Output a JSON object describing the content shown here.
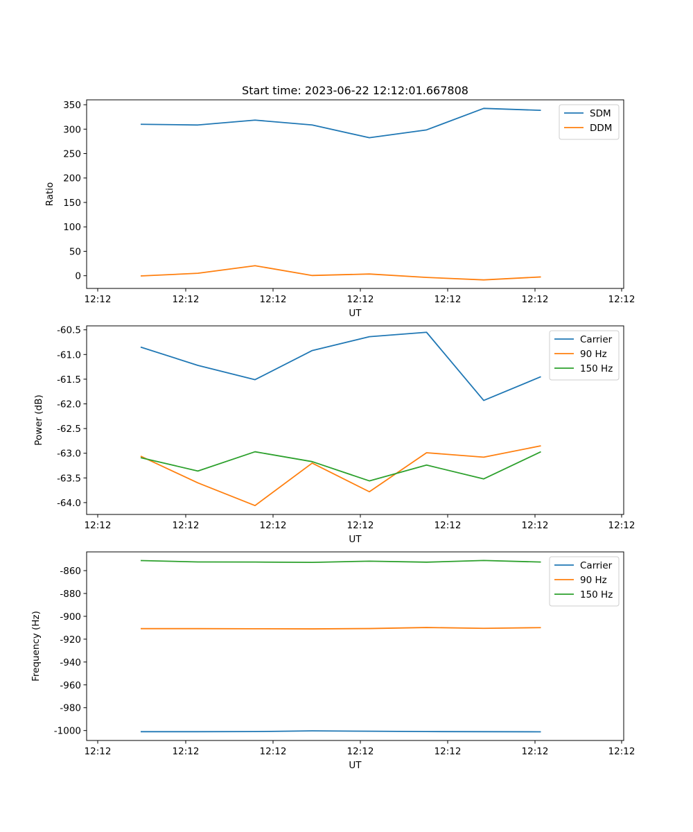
{
  "figure_title": "Start time: 2023-06-22 12:12:01.667808",
  "chart_data": [
    {
      "type": "line",
      "title": "Start time: 2023-06-22 12:12:01.667808",
      "xlabel": "UT",
      "ylabel": "Ratio",
      "x_tick_labels": [
        "12:12",
        "12:12",
        "12:12",
        "12:12",
        "12:12",
        "12:12",
        "12:12"
      ],
      "y_ticks": [
        0,
        50,
        100,
        150,
        200,
        250,
        300,
        350
      ],
      "ylim": [
        -26,
        360
      ],
      "legend_position": "upper right",
      "series": [
        {
          "name": "SDM",
          "color": "#1f77b4",
          "values": [
            310,
            308.5,
            318.5,
            308.5,
            282.5,
            298.5,
            342.5,
            338.5
          ]
        },
        {
          "name": "DDM",
          "color": "#ff7f0e",
          "values": [
            -0.5,
            5,
            20.5,
            0.5,
            3.5,
            -3.5,
            -8.5,
            -2.5
          ]
        }
      ]
    },
    {
      "type": "line",
      "xlabel": "UT",
      "ylabel": "Power (dB)",
      "x_tick_labels": [
        "12:12",
        "12:12",
        "12:12",
        "12:12",
        "12:12",
        "12:12",
        "12:12"
      ],
      "y_ticks": [
        -64.0,
        -63.5,
        -63.0,
        -62.5,
        -62.0,
        -61.5,
        -61.0,
        -60.5
      ],
      "ylim": [
        -64.24,
        -60.42
      ],
      "legend_position": "upper right",
      "series": [
        {
          "name": "Carrier",
          "color": "#1f77b4",
          "values": [
            -60.85,
            -61.22,
            -61.51,
            -60.92,
            -60.64,
            -60.55,
            -61.93,
            -61.45
          ]
        },
        {
          "name": "90 Hz",
          "color": "#ff7f0e",
          "values": [
            -63.06,
            -63.6,
            -64.06,
            -63.2,
            -63.78,
            -62.99,
            -63.08,
            -62.85
          ]
        },
        {
          "name": "150 Hz",
          "color": "#2ca02c",
          "values": [
            -63.09,
            -63.36,
            -62.97,
            -63.17,
            -63.56,
            -63.24,
            -63.52,
            -62.97
          ]
        }
      ]
    },
    {
      "type": "line",
      "xlabel": "UT",
      "ylabel": "Frequency (Hz)",
      "x_tick_labels": [
        "12:12",
        "12:12",
        "12:12",
        "12:12",
        "12:12",
        "12:12",
        "12:12"
      ],
      "y_ticks": [
        -1000,
        -980,
        -960,
        -940,
        -920,
        -900,
        -880,
        -860
      ],
      "ylim": [
        -1008.7,
        -843.6
      ],
      "legend_position": "upper right",
      "series": [
        {
          "name": "Carrier",
          "color": "#1f77b4",
          "values": [
            -1001.0,
            -1001.0,
            -1000.9,
            -1000.3,
            -1000.6,
            -1000.9,
            -1001.0,
            -1001.1
          ]
        },
        {
          "name": "90 Hz",
          "color": "#ff7f0e",
          "values": [
            -910.8,
            -910.8,
            -910.9,
            -911.0,
            -910.7,
            -909.8,
            -910.5,
            -909.9
          ]
        },
        {
          "name": "150 Hz",
          "color": "#2ca02c",
          "values": [
            -851.2,
            -852.4,
            -852.5,
            -852.8,
            -851.7,
            -852.6,
            -851.1,
            -852.5
          ]
        }
      ]
    }
  ]
}
